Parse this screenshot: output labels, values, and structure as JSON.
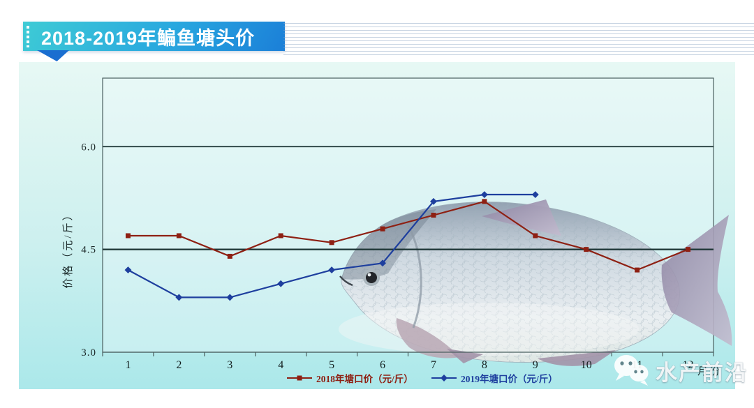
{
  "header": {
    "title": "2018-2019年鳊鱼塘头价"
  },
  "chart_data": {
    "type": "line",
    "title": "2018-2019年鳊鱼塘头价",
    "categories": [
      "1",
      "2",
      "3",
      "4",
      "5",
      "6",
      "7",
      "8",
      "9",
      "10",
      "11",
      "12"
    ],
    "xlabel": "月份",
    "ylabel": "价格（元/斤）",
    "ylim": [
      3.0,
      7.0
    ],
    "yticks": [
      "3.0",
      "4.5",
      "6.0"
    ],
    "grid": "horizontal",
    "legend_position": "bottom",
    "series": [
      {
        "name": "2018年塘口价（元/斤）",
        "color": "#8e2013",
        "marker": "square",
        "values": [
          4.7,
          4.7,
          4.4,
          4.7,
          4.6,
          4.8,
          5.0,
          5.2,
          4.7,
          4.5,
          4.2,
          4.5
        ]
      },
      {
        "name": "2019年塘口价（元/斤）",
        "color": "#1e3f9e",
        "marker": "diamond",
        "values": [
          4.2,
          3.8,
          3.8,
          4.0,
          4.2,
          4.3,
          5.2,
          5.3,
          5.3,
          null,
          null,
          null
        ]
      }
    ]
  },
  "watermark": {
    "brand": "水产前沿",
    "icon": "wechat-icon"
  },
  "theme": {
    "banner_gradient_start": "#3ecbd5",
    "banner_gradient_end": "#1b7fd8",
    "panel_gradient_start": "#e7f8f4",
    "panel_gradient_end": "#abe8ea",
    "grid_color": "#1c3434",
    "frame_color": "#4a5f5f"
  }
}
